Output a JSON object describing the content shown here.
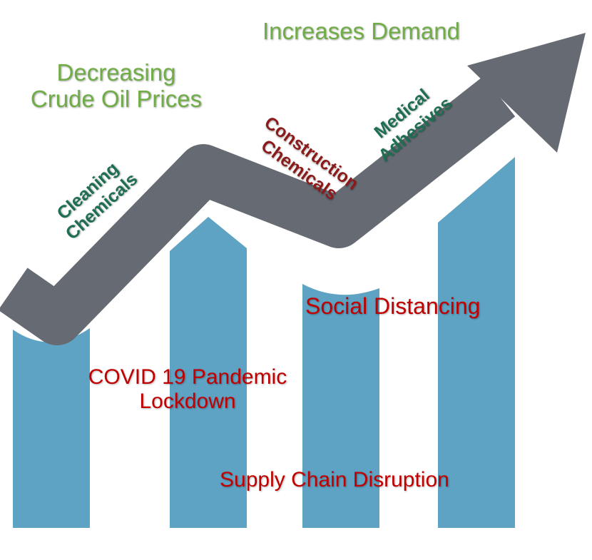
{
  "colors": {
    "bar": "#5fa3c4",
    "arrow": "#666a72",
    "demand_text": "#70ad47",
    "disruption_text": "#c00000",
    "segment_text_green": "#1e6e52",
    "segment_text_red": "#8b1a1a"
  },
  "headline": {
    "increases_demand": "Increases Demand",
    "decreasing_prices_line1": "Decreasing",
    "decreasing_prices_line2": "Crude Oil Prices"
  },
  "segments": {
    "cleaning": {
      "line1": "Cleaning",
      "line2": "Chemicals"
    },
    "construction": {
      "line1": "Construction",
      "line2": "Chemicals"
    },
    "medical": {
      "line1": "Medical",
      "line2": "Adhesives"
    }
  },
  "challenges": {
    "covid_line1": "COVID 19 Pandemic",
    "covid_line2": "Lockdown",
    "social_distancing": "Social Distancing",
    "supply_chain": "Supply Chain Disruption"
  }
}
